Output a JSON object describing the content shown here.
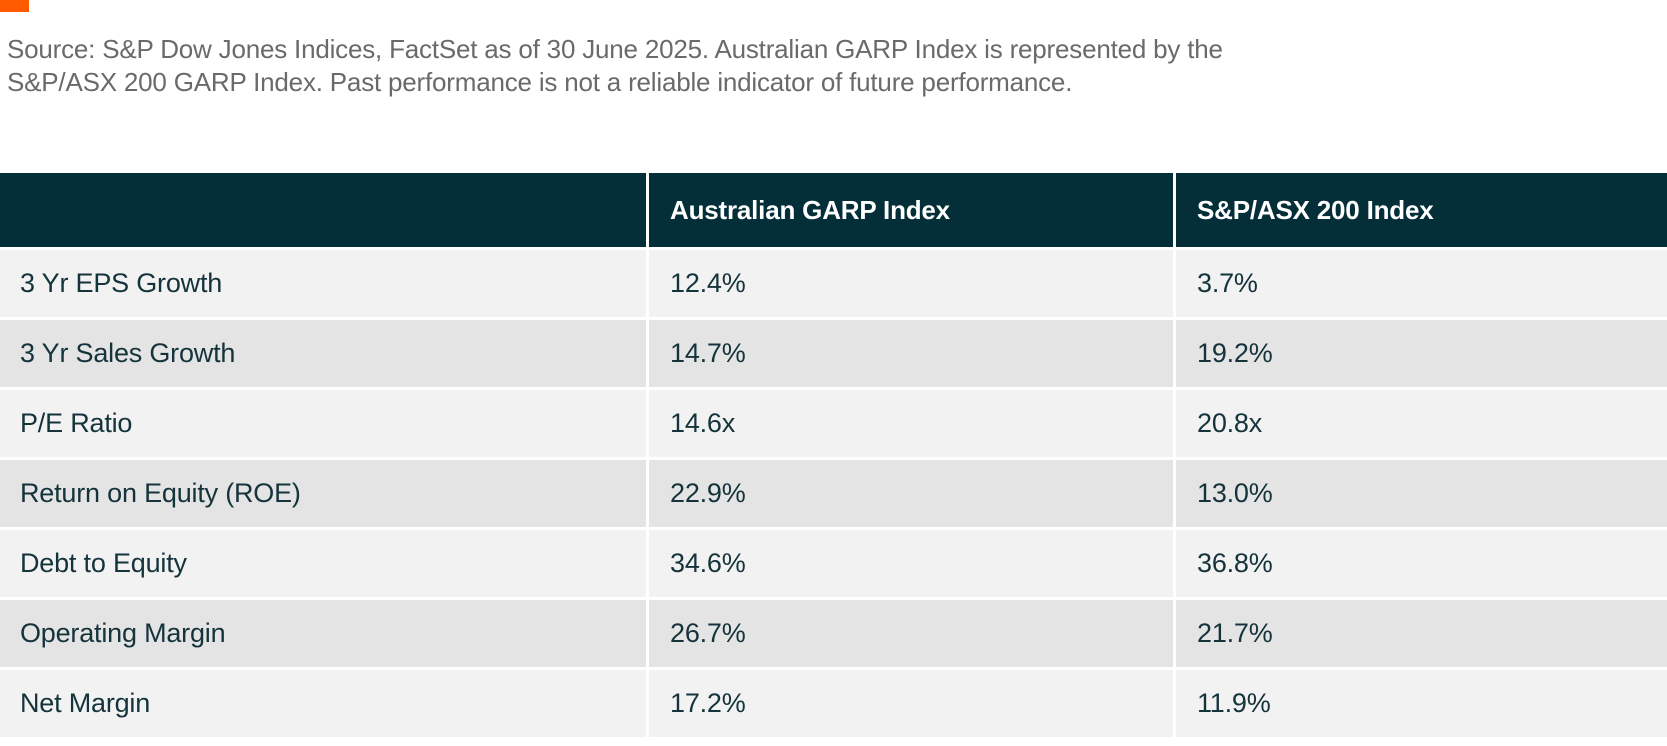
{
  "source_note": {
    "line1": "Source: S&P Dow Jones Indices, FactSet as of 30 June 2025. Australian GARP Index is represented by the",
    "line2": "S&P/ASX 200 GARP Index. Past performance is not a reliable indicator of future performance."
  },
  "table": {
    "columns": [
      "",
      "Australian GARP Index",
      "S&P/ASX 200 Index"
    ],
    "rows": [
      {
        "metric": "3 Yr EPS Growth",
        "garp": "12.4%",
        "asx": "3.7%"
      },
      {
        "metric": "3 Yr Sales Growth",
        "garp": "14.7%",
        "asx": "19.2%"
      },
      {
        "metric": "P/E Ratio",
        "garp": "14.6x",
        "asx": "20.8x"
      },
      {
        "metric": "Return on Equity (ROE)",
        "garp": "22.9%",
        "asx": "13.0%"
      },
      {
        "metric": "Debt to Equity",
        "garp": "34.6%",
        "asx": "36.8%"
      },
      {
        "metric": "Operating Margin",
        "garp": "26.7%",
        "asx": "21.7%"
      },
      {
        "metric": "Net Margin",
        "garp": "17.2%",
        "asx": "11.9%"
      }
    ]
  },
  "colors": {
    "accent_orange": "#ff5a00",
    "header_background": "#042f38",
    "row_light": "#f2f2f2",
    "row_dark": "#e4e4e4",
    "cell_text": "#14333b",
    "source_text": "#6a6a6a",
    "header_text": "#ffffff"
  }
}
